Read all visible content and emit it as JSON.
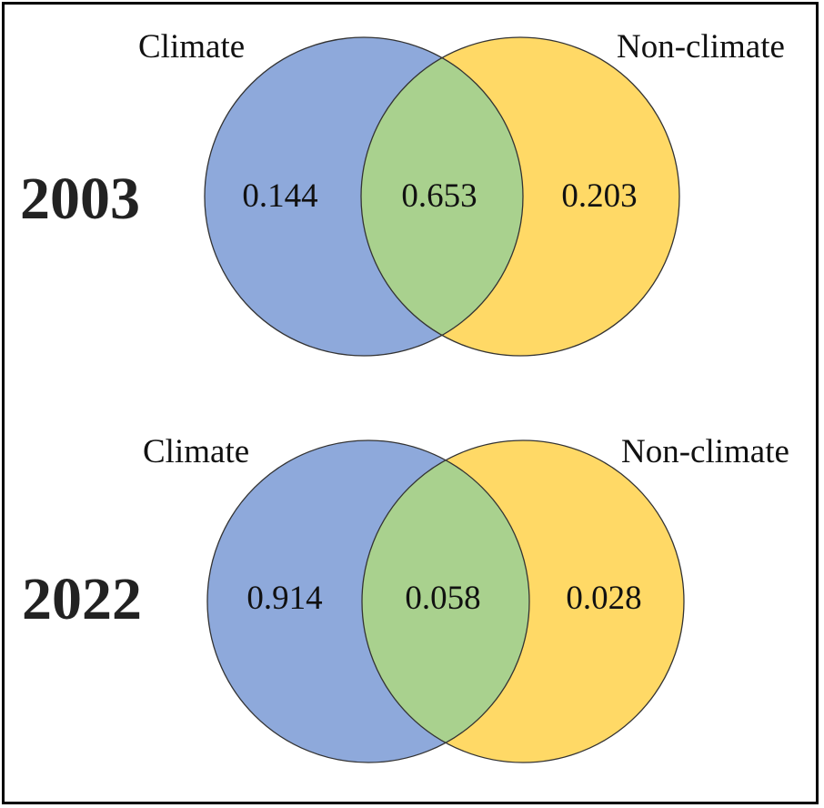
{
  "panels": [
    {
      "year": "2003",
      "left_label": "Climate",
      "right_label": "Non-climate",
      "left_only": "0.144",
      "overlap": "0.653",
      "right_only": "0.203"
    },
    {
      "year": "2022",
      "left_label": "Climate",
      "right_label": "Non-climate",
      "left_only": "0.914",
      "overlap": "0.058",
      "right_only": "0.028"
    }
  ],
  "colors": {
    "climate": "#8EA9DB",
    "non_climate": "#FFD966",
    "overlap": "#A9D18E",
    "outline": "#333333"
  }
}
